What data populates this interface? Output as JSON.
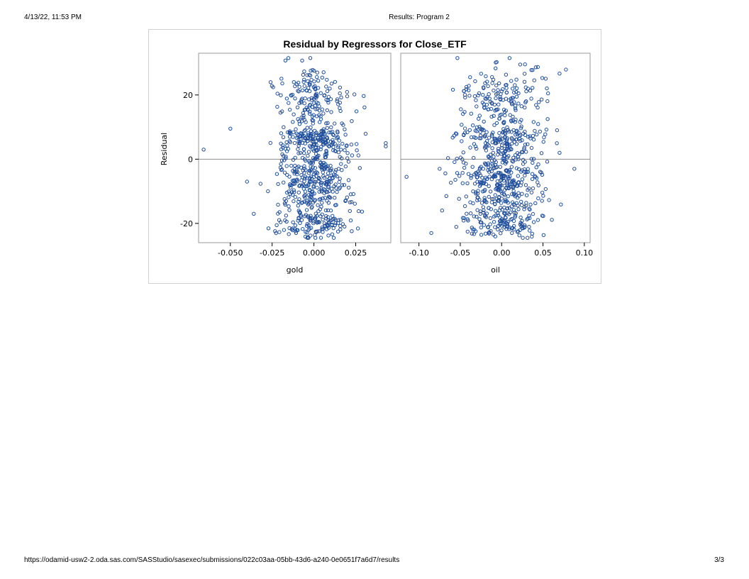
{
  "header": {
    "datetime": "4/13/22, 11:53 PM",
    "title": "Results: Program 2"
  },
  "footer": {
    "url": "https://odamid-usw2-2.oda.sas.com/SASStudio/sasexec/submissions/022c03aa-05bb-43d6-a240-0e0651f7a6d7/results",
    "page": "3/3"
  },
  "colors": {
    "marker": "#1f4e9c",
    "reference_line": "#8c8c8c",
    "frame": "#999999"
  },
  "chart_data": {
    "type": "scatter",
    "title": "Residual by Regressors for Close_ETF",
    "ylabel": "Residual",
    "ylim": [
      -26,
      33
    ],
    "yticks": [
      {
        "value": -20,
        "label": "-20"
      },
      {
        "value": 0,
        "label": "0"
      },
      {
        "value": 20,
        "label": "20"
      }
    ],
    "reference_line_y": 0,
    "grid": false,
    "panels": [
      {
        "xlabel": "gold",
        "xlim": [
          -0.069,
          0.046
        ],
        "xticks": [
          {
            "value": -0.05,
            "label": "-0.050"
          },
          {
            "value": -0.025,
            "label": "-0.025"
          },
          {
            "value": 0,
            "label": "0.000"
          },
          {
            "value": 0.025,
            "label": "0.025"
          }
        ],
        "n_points": 760
      },
      {
        "xlabel": "oil",
        "xlim": [
          -0.122,
          0.107
        ],
        "xticks": [
          {
            "value": -0.1,
            "label": "-0.10"
          },
          {
            "value": -0.05,
            "label": "-0.05"
          },
          {
            "value": 0,
            "label": "0.00"
          },
          {
            "value": 0.05,
            "label": "0.05"
          },
          {
            "value": 0.1,
            "label": "0.10"
          }
        ],
        "n_points": 760
      }
    ]
  }
}
